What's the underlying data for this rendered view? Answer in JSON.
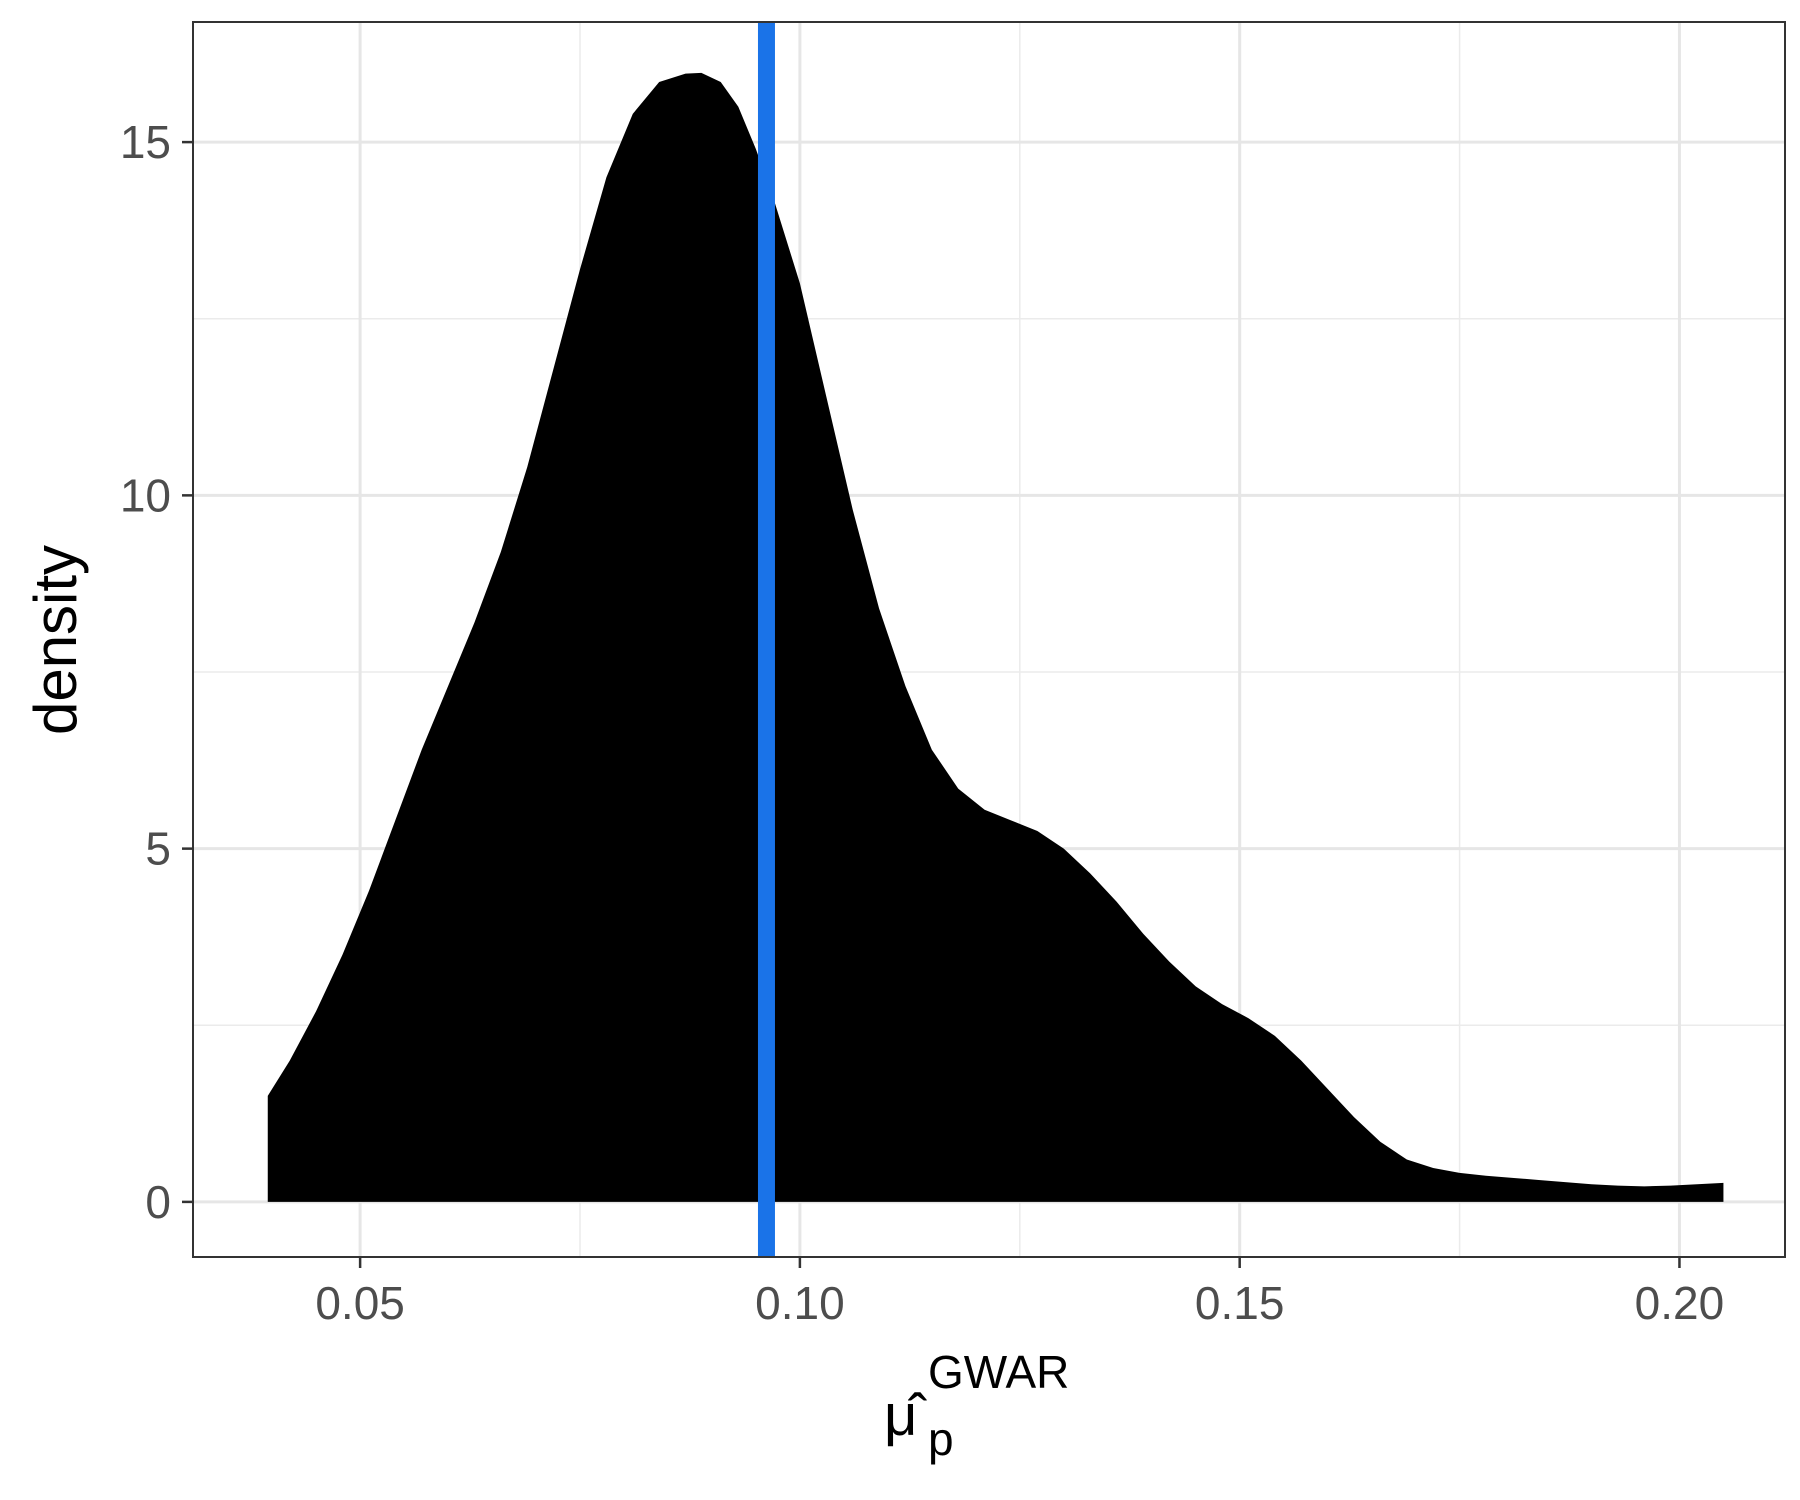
{
  "chart_data": {
    "type": "area",
    "xlabel_base": "μ̂",
    "xlabel_subscript": "p",
    "xlabel_superscript": "GWAR",
    "ylabel": "density",
    "xlim": [
      0.031,
      0.212
    ],
    "ylim": [
      -0.78,
      16.7
    ],
    "x_ticks": [
      0.05,
      0.1,
      0.15,
      0.2
    ],
    "x_tick_labels": [
      "0.05",
      "0.10",
      "0.15",
      "0.20"
    ],
    "x_minor_ticks": [
      0.075,
      0.125,
      0.175
    ],
    "y_ticks": [
      0,
      5,
      10,
      15
    ],
    "y_tick_labels": [
      "0",
      "5",
      "10",
      "15"
    ],
    "y_minor_ticks": [
      2.5,
      7.5,
      12.5
    ],
    "grid": true,
    "fill_color": "#000000",
    "vline": {
      "x": 0.0962,
      "color": "#1a73e8"
    },
    "series": [
      {
        "x": [
          0.0395,
          0.042,
          0.045,
          0.048,
          0.051,
          0.054,
          0.057,
          0.06,
          0.063,
          0.066,
          0.069,
          0.072,
          0.075,
          0.078,
          0.081,
          0.084,
          0.087,
          0.0888,
          0.091,
          0.093,
          0.095,
          0.097,
          0.1,
          0.103,
          0.106,
          0.109,
          0.112,
          0.115,
          0.118,
          0.121,
          0.124,
          0.127,
          0.13,
          0.133,
          0.136,
          0.139,
          0.142,
          0.145,
          0.148,
          0.151,
          0.154,
          0.157,
          0.16,
          0.163,
          0.166,
          0.169,
          0.172,
          0.175,
          0.178,
          0.181,
          0.184,
          0.187,
          0.19,
          0.193,
          0.196,
          0.199,
          0.202,
          0.205
        ],
        "y": [
          1.5,
          2.0,
          2.7,
          3.5,
          4.4,
          5.4,
          6.4,
          7.3,
          8.2,
          9.2,
          10.4,
          11.8,
          13.2,
          14.5,
          15.4,
          15.85,
          15.97,
          15.98,
          15.85,
          15.5,
          14.9,
          14.2,
          13.0,
          11.4,
          9.8,
          8.4,
          7.3,
          6.4,
          5.85,
          5.55,
          5.4,
          5.25,
          5.0,
          4.65,
          4.25,
          3.8,
          3.4,
          3.05,
          2.8,
          2.6,
          2.35,
          2.0,
          1.6,
          1.2,
          0.85,
          0.6,
          0.48,
          0.41,
          0.37,
          0.34,
          0.31,
          0.28,
          0.25,
          0.23,
          0.22,
          0.23,
          0.25,
          0.27
        ]
      }
    ]
  }
}
